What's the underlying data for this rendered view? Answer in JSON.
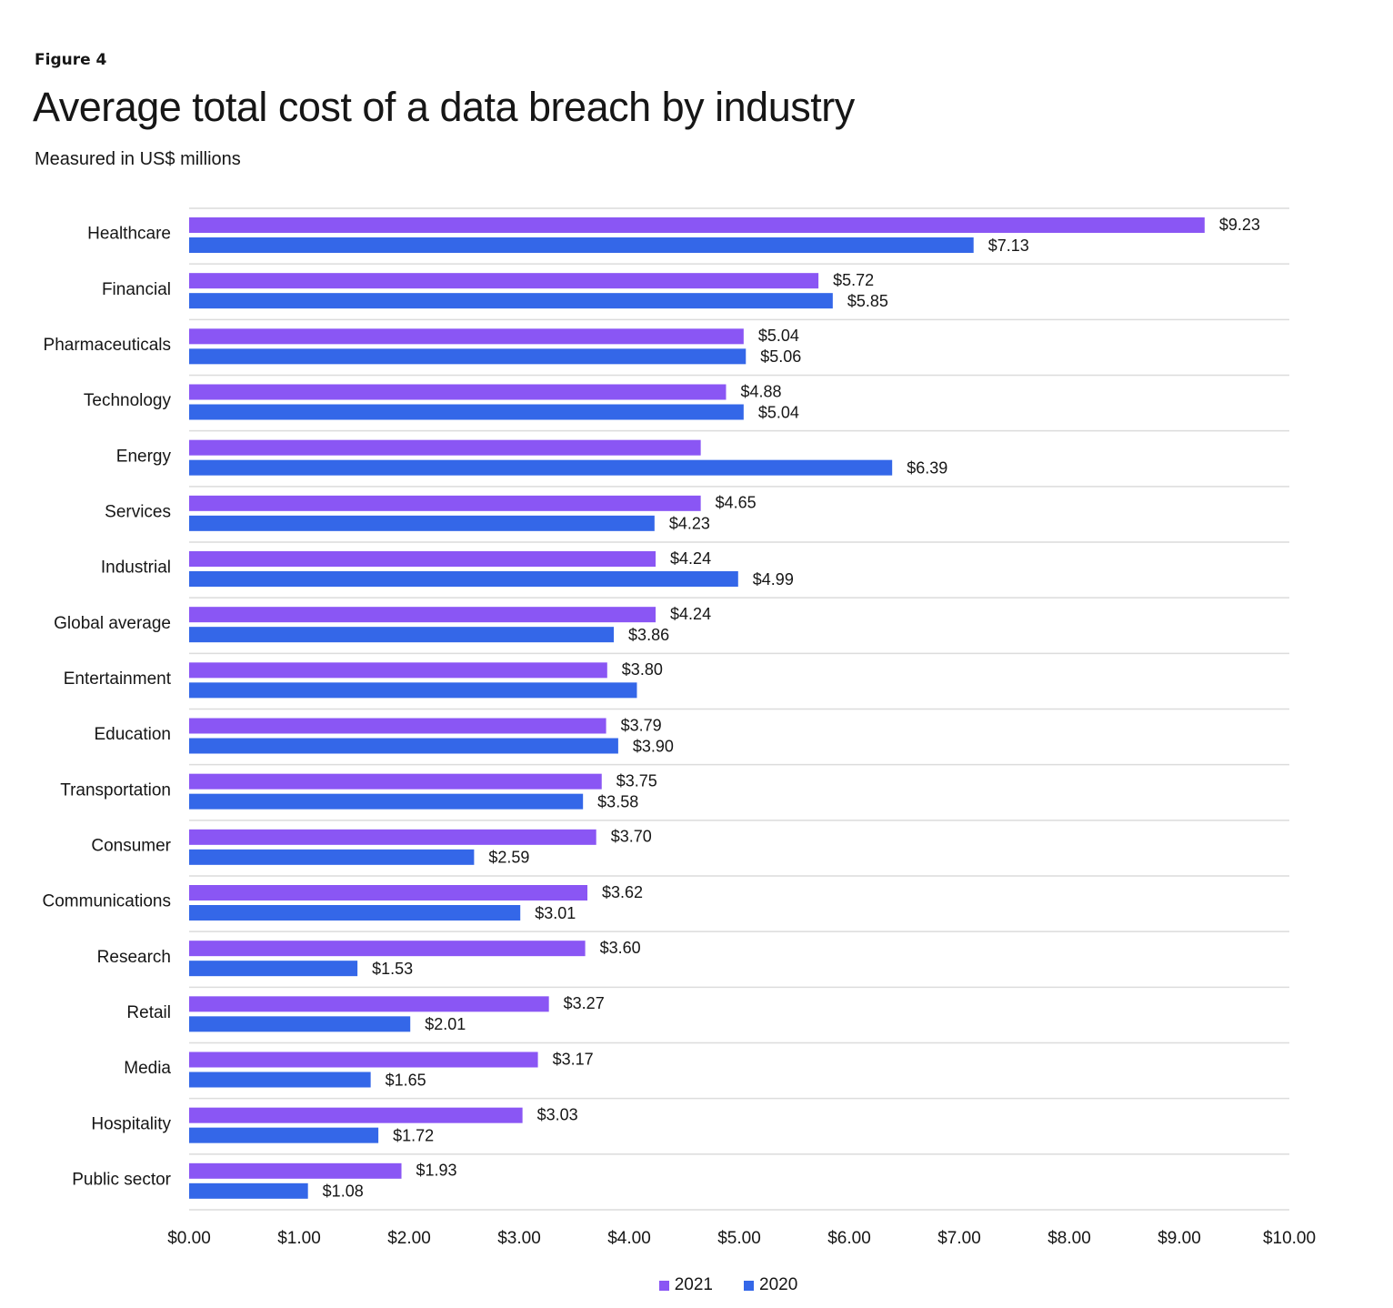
{
  "chart_data": {
    "type": "bar",
    "orientation": "horizontal",
    "figure_label": "Figure 4",
    "title": "Average total cost of a data breach by industry",
    "subtitle": "Measured in US$ millions",
    "xlim": [
      0,
      10
    ],
    "x_ticks": [
      "$0.00",
      "$1.00",
      "$2.00",
      "$3.00",
      "$4.00",
      "$5.00",
      "$6.00",
      "$7.00",
      "$8.00",
      "$9.00",
      "$10.00"
    ],
    "grid": "horizontal separators",
    "legend_position": "bottom",
    "categories": [
      "Healthcare",
      "Financial",
      "Pharmaceuticals",
      "Technology",
      "Energy",
      "Services",
      "Industrial",
      "Global average",
      "Entertainment",
      "Education",
      "Transportation",
      "Consumer",
      "Communications",
      "Research",
      "Retail",
      "Media",
      "Hospitality",
      "Public sector"
    ],
    "series": [
      {
        "name": "2021",
        "color": "#8a56f4",
        "values": [
          9.23,
          5.72,
          5.04,
          4.88,
          4.65,
          4.65,
          4.24,
          4.24,
          3.8,
          3.79,
          3.75,
          3.7,
          3.62,
          3.6,
          3.27,
          3.17,
          3.03,
          1.93
        ],
        "labels": [
          "$9.23",
          "$5.72",
          "$5.04",
          "$4.88",
          null,
          "$4.65",
          "$4.24",
          "$4.24",
          "$3.80",
          "$3.79",
          "$3.75",
          "$3.70",
          "$3.62",
          "$3.60",
          "$3.27",
          "$3.17",
          "$3.03",
          "$1.93"
        ]
      },
      {
        "name": "2020",
        "color": "#3467e8",
        "values": [
          7.13,
          5.85,
          5.06,
          5.04,
          6.39,
          4.23,
          4.99,
          3.86,
          4.07,
          3.9,
          3.58,
          2.59,
          3.01,
          1.53,
          2.01,
          1.65,
          1.72,
          1.08
        ],
        "labels": [
          "$7.13",
          "$5.85",
          "$5.06",
          "$5.04",
          "$6.39",
          "$4.23",
          "$4.99",
          "$3.86",
          null,
          "$3.90",
          "$3.58",
          "$2.59",
          "$3.01",
          "$1.53",
          "$2.01",
          "$1.65",
          "$1.72",
          "$1.08"
        ]
      }
    ]
  }
}
